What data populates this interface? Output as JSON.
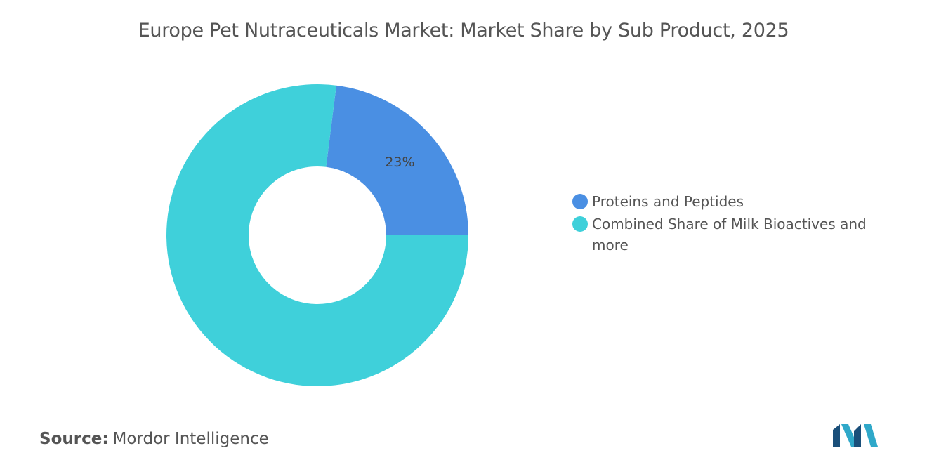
{
  "chart_data": {
    "type": "donut",
    "title": "Europe Pet Nutraceuticals Market: Market Share by Sub Product, 2025",
    "categories": [
      "Proteins and Peptides",
      "Combined Share of Milk Bioactives and more"
    ],
    "values": [
      23,
      77
    ],
    "value_labels": [
      "23%",
      null
    ],
    "colors": [
      "#4a8fe3",
      "#3fd0da"
    ],
    "legend": "right"
  },
  "source": {
    "label": "Source:",
    "text": "Mordor Intelligence"
  }
}
